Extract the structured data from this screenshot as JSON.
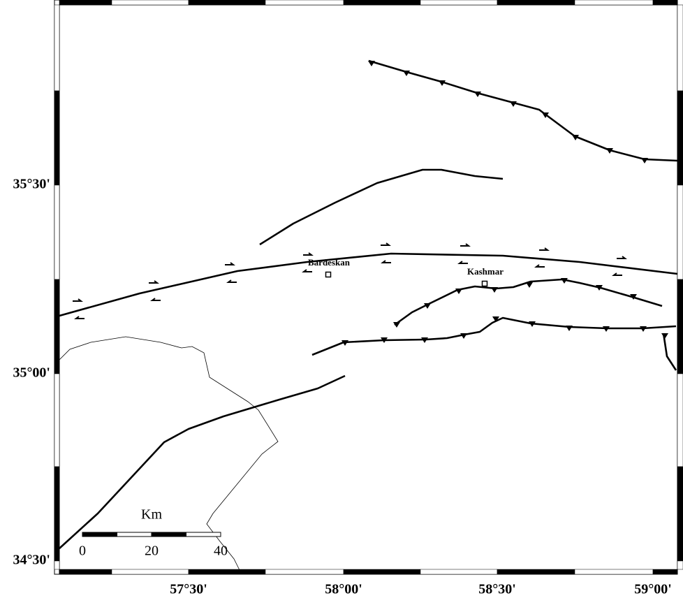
{
  "map": {
    "latitude_labels": [
      "35°30'",
      "35°00'",
      "34°30'"
    ],
    "longitude_labels": [
      "57°30'",
      "58°00'",
      "58°30'",
      "59°00'"
    ],
    "places": [
      {
        "label": "Bardeskan"
      },
      {
        "label": "Kashmar"
      }
    ],
    "scale_bar": {
      "unit": "Km",
      "labels": [
        "0",
        "20",
        "40"
      ]
    }
  }
}
